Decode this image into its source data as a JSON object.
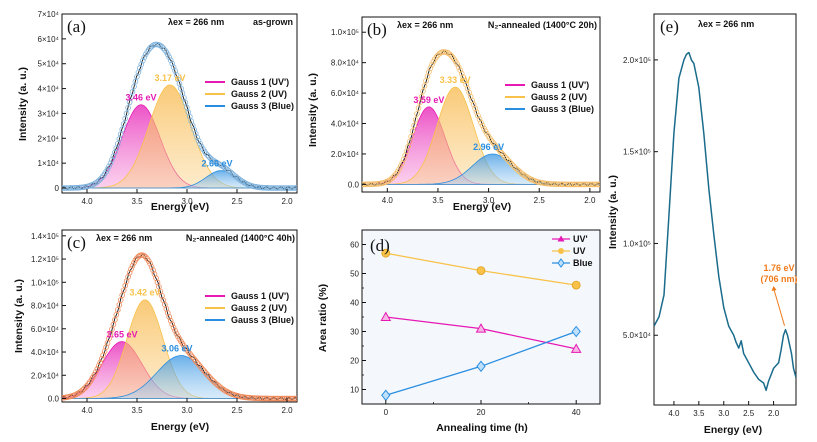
{
  "colors": {
    "uv_prime": "#e619b4",
    "uv": "#f8c24a",
    "blue": "#2a8ee0",
    "panel_a_data": "#7fb3dd",
    "panel_b_data": "#f4bd6a",
    "panel_c_data": "#f08a5a",
    "panel_e_line": "#1a6b8c",
    "annotation_orange": "#f07a1a",
    "d_background": "#f4f8fd"
  },
  "chart_data": [
    {
      "id": "a",
      "type": "area",
      "panel_label": "(a)",
      "excitation_label": "λex = 266 nm",
      "condition_label": "as-grown",
      "xlabel": "Energy (eV)",
      "ylabel": "Intensity (a. u.)",
      "xlim": [
        4.25,
        1.9
      ],
      "ylim": [
        -2000,
        70000
      ],
      "x_ticks": [
        4.0,
        3.5,
        3.0,
        2.5,
        2.0
      ],
      "x_tick_labels": [
        "4.0",
        "3.5",
        "3.0",
        "2.5",
        "2.0"
      ],
      "y_ticks": [
        0,
        10000,
        20000,
        30000,
        40000,
        50000,
        60000,
        70000
      ],
      "y_tick_labels": [
        "0",
        "1×10⁴",
        "2×10⁴",
        "3×10⁴",
        "4×10⁴",
        "5×10⁴",
        "6×10⁴",
        "7×10⁴"
      ],
      "legend": [
        "Gauss 1 (UV')",
        "Gauss 2 (UV)",
        "Gauss 3 (Blue)"
      ],
      "legend_position": "center-right",
      "gaussians": [
        {
          "name": "Gauss 1 (UV')",
          "center_eV": 3.46,
          "amplitude": 33500,
          "sigma": 0.19,
          "label": "3.46 eV"
        },
        {
          "name": "Gauss 2 (UV)",
          "center_eV": 3.17,
          "amplitude": 41500,
          "sigma": 0.21,
          "label": "3.17 eV"
        },
        {
          "name": "Gauss 3 (Blue)",
          "center_eV": 2.66,
          "amplitude": 7000,
          "sigma": 0.15,
          "label": "2.66 eV"
        }
      ],
      "measured_peak": {
        "x": 3.33,
        "y": 61000
      }
    },
    {
      "id": "b",
      "type": "area",
      "panel_label": "(b)",
      "excitation_label": "λex = 266 nm",
      "condition_label": "N₂-annealed (1400°C 20h)",
      "xlabel": "Energy (eV)",
      "ylabel": "Intensity (a. u.)",
      "xlim": [
        4.25,
        1.9
      ],
      "ylim": [
        -5000,
        110000
      ],
      "x_ticks": [
        4.0,
        3.5,
        3.0,
        2.5,
        2.0
      ],
      "x_tick_labels": [
        "4.0",
        "3.5",
        "3.0",
        "2.5",
        "2.0"
      ],
      "y_ticks": [
        0,
        20000,
        40000,
        60000,
        80000,
        100000
      ],
      "y_tick_labels": [
        "0.0",
        "2.0×10⁴",
        "4.0×10⁴",
        "6.0×10⁴",
        "8.0×10⁴",
        "1.0×10⁵"
      ],
      "legend": [
        "Gauss 1 (UV')",
        "Gauss 2 (UV)",
        "Gauss 3 (Blue)"
      ],
      "legend_position": "center-right",
      "gaussians": [
        {
          "name": "Gauss 1 (UV')",
          "center_eV": 3.59,
          "amplitude": 51000,
          "sigma": 0.16,
          "label": "3.59 eV"
        },
        {
          "name": "Gauss 2 (UV)",
          "center_eV": 3.33,
          "amplitude": 64000,
          "sigma": 0.18,
          "label": "3.33 eV"
        },
        {
          "name": "Gauss 3 (Blue)",
          "center_eV": 2.96,
          "amplitude": 20000,
          "sigma": 0.2,
          "label": "2.96 eV"
        }
      ],
      "measured_peak": {
        "x": 3.47,
        "y": 95000
      }
    },
    {
      "id": "c",
      "type": "area",
      "panel_label": "(c)",
      "excitation_label": "λex = 266 nm",
      "condition_label": "N₂-annealed (1400°C 40h)",
      "xlabel": "Energy (eV)",
      "ylabel": "Intensity (a. u.)",
      "xlim": [
        4.25,
        1.9
      ],
      "ylim": [
        -3000,
        145000
      ],
      "x_ticks": [
        4.0,
        3.5,
        3.0,
        2.5,
        2.0
      ],
      "x_tick_labels": [
        "4.0",
        "3.5",
        "3.0",
        "2.5",
        "2.0"
      ],
      "y_ticks": [
        0,
        20000,
        40000,
        60000,
        80000,
        100000,
        120000,
        140000
      ],
      "y_tick_labels": [
        "0.0",
        "2.0×10⁴",
        "4.0×10⁴",
        "6.0×10⁴",
        "8.0×10⁴",
        "1.0×10⁵",
        "1.2×10⁵",
        "1.4×10⁵"
      ],
      "legend": [
        "Gauss 1 (UV')",
        "Gauss 2 (UV)",
        "Gauss 3 (Blue)"
      ],
      "legend_position": "center-right",
      "gaussians": [
        {
          "name": "Gauss 1 (UV')",
          "center_eV": 3.65,
          "amplitude": 49000,
          "sigma": 0.2,
          "label": "3.65 eV"
        },
        {
          "name": "Gauss 2 (UV)",
          "center_eV": 3.42,
          "amplitude": 85000,
          "sigma": 0.18,
          "label": "3.42 eV"
        },
        {
          "name": "Gauss 3 (Blue)",
          "center_eV": 3.06,
          "amplitude": 37000,
          "sigma": 0.24,
          "label": "3.06 eV"
        }
      ],
      "measured_peak": {
        "x": 3.45,
        "y": 134000
      }
    },
    {
      "id": "d",
      "type": "line",
      "panel_label": "(d)",
      "xlabel": "Annealing time (h)",
      "ylabel": "Area ratio (%)",
      "xlim": [
        -5,
        45
      ],
      "ylim": [
        5,
        65
      ],
      "x_ticks": [
        0,
        20,
        40
      ],
      "x_tick_labels": [
        "0",
        "20",
        "40"
      ],
      "y_ticks": [
        10,
        20,
        30,
        40,
        50,
        60
      ],
      "y_tick_labels": [
        "10",
        "20",
        "30",
        "40",
        "50",
        "60"
      ],
      "legend_position": "top-right",
      "x": [
        0,
        20,
        40
      ],
      "series": [
        {
          "name": "UV'",
          "marker": "triangle",
          "values": [
            35,
            31,
            24
          ]
        },
        {
          "name": "UV",
          "marker": "circle",
          "values": [
            57,
            51,
            46
          ]
        },
        {
          "name": "Blue",
          "marker": "diamond",
          "values": [
            8,
            18,
            30
          ]
        }
      ]
    },
    {
      "id": "e",
      "type": "line",
      "panel_label": "(e)",
      "excitation_label": "λex = 266 nm",
      "xlabel": "Energy (eV)",
      "ylabel": "Intensity (a. u.)",
      "xlim": [
        4.4,
        1.55
      ],
      "ylim": [
        12000,
        225000
      ],
      "x_ticks": [
        4.0,
        3.5,
        3.0,
        2.5,
        2.0
      ],
      "x_tick_labels": [
        "4.0",
        "3.5",
        "3.0",
        "2.5",
        "2.0"
      ],
      "y_ticks": [
        50000,
        100000,
        150000,
        200000
      ],
      "y_tick_labels": [
        "5.0×10⁴",
        "1.0×10⁵",
        "1.5×10⁵",
        "2.0×10⁵"
      ],
      "annotation": {
        "line1": "1.76 eV",
        "line2": "(706 nm)",
        "x": 1.76,
        "y": 53000
      },
      "x": [
        4.4,
        4.3,
        4.2,
        4.1,
        4.0,
        3.9,
        3.8,
        3.75,
        3.7,
        3.65,
        3.6,
        3.5,
        3.4,
        3.3,
        3.2,
        3.1,
        3.0,
        2.9,
        2.8,
        2.75,
        2.7,
        2.65,
        2.6,
        2.5,
        2.4,
        2.3,
        2.2,
        2.15,
        2.1,
        2.0,
        1.9,
        1.85,
        1.8,
        1.76,
        1.72,
        1.68,
        1.64,
        1.6,
        1.55
      ],
      "y": [
        55000,
        60000,
        72000,
        115000,
        160000,
        190000,
        200000,
        203000,
        204000,
        200000,
        198000,
        185000,
        160000,
        130000,
        105000,
        82000,
        65000,
        55000,
        50000,
        46000,
        43000,
        47000,
        40000,
        35000,
        30000,
        26000,
        24000,
        20000,
        25000,
        32000,
        35000,
        42000,
        50000,
        53000,
        50000,
        45000,
        40000,
        32000,
        27000
      ]
    }
  ]
}
